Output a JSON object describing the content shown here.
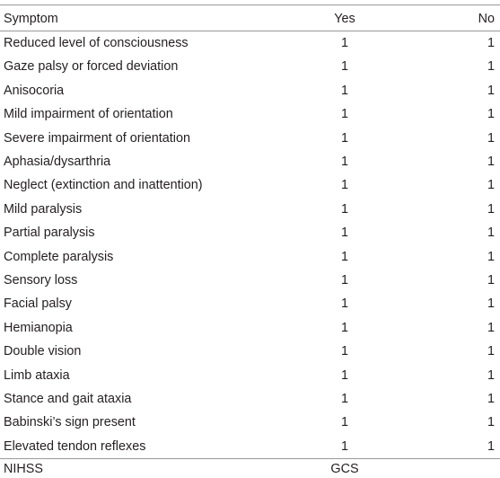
{
  "header": {
    "symptom": "Symptom",
    "yes": "Yes",
    "no": "No"
  },
  "rows": [
    {
      "symptom": "Reduced level of consciousness",
      "yes": "1",
      "no": "1"
    },
    {
      "symptom": "Gaze palsy or forced deviation",
      "yes": "1",
      "no": "1"
    },
    {
      "symptom": "Anisocoria",
      "yes": "1",
      "no": "1"
    },
    {
      "symptom": "Mild impairment of orientation",
      "yes": "1",
      "no": "1"
    },
    {
      "symptom": "Severe impairment of orientation",
      "yes": "1",
      "no": "1"
    },
    {
      "symptom": "Aphasia/dysarthria",
      "yes": "1",
      "no": "1"
    },
    {
      "symptom": "Neglect (extinction and inattention)",
      "yes": "1",
      "no": "1"
    },
    {
      "symptom": "Mild paralysis",
      "yes": "1",
      "no": "1"
    },
    {
      "symptom": "Partial paralysis",
      "yes": "1",
      "no": "1"
    },
    {
      "symptom": "Complete paralysis",
      "yes": "1",
      "no": "1"
    },
    {
      "symptom": "Sensory loss",
      "yes": "1",
      "no": "1"
    },
    {
      "symptom": "Facial palsy",
      "yes": "1",
      "no": "1"
    },
    {
      "symptom": "Hemianopia",
      "yes": "1",
      "no": "1"
    },
    {
      "symptom": "Double vision",
      "yes": "1",
      "no": "1"
    },
    {
      "symptom": "Limb ataxia",
      "yes": "1",
      "no": "1"
    },
    {
      "symptom": "Stance and gait ataxia",
      "yes": "1",
      "no": "1"
    },
    {
      "symptom": "Babinski’s sign present",
      "yes": "1",
      "no": "1"
    },
    {
      "symptom": "Elevated tendon reflexes",
      "yes": "1",
      "no": "1"
    }
  ],
  "footer": {
    "left": "NIHSS",
    "mid": "GCS"
  }
}
